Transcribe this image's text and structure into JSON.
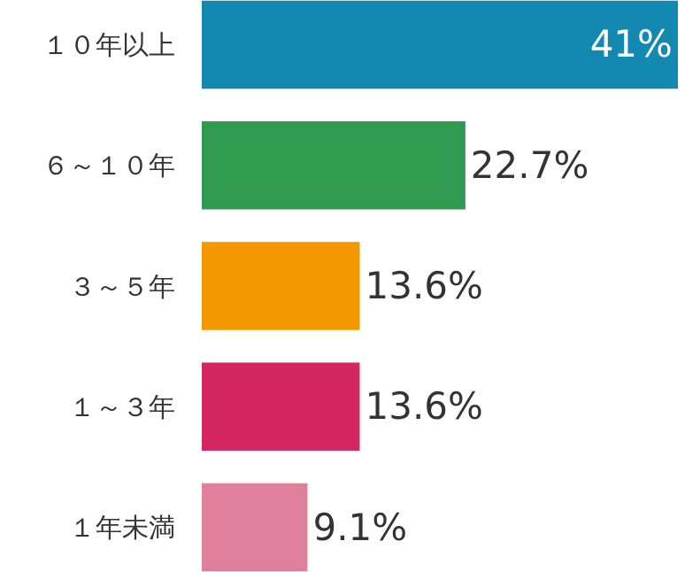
{
  "chart_data": {
    "type": "bar",
    "orientation": "horizontal",
    "categories": [
      "１０年以上",
      "６～１０年",
      "３～５年",
      "１～３年",
      "１年未満"
    ],
    "values": [
      41,
      22.7,
      13.6,
      13.6,
      9.1
    ],
    "colors": [
      "#1388b1",
      "#2f9a50",
      "#f39800",
      "#d42660",
      "#de7f9c"
    ],
    "value_labels": [
      "41%",
      "22.7%",
      "13.6%",
      "13.6%",
      "9.1%"
    ]
  }
}
